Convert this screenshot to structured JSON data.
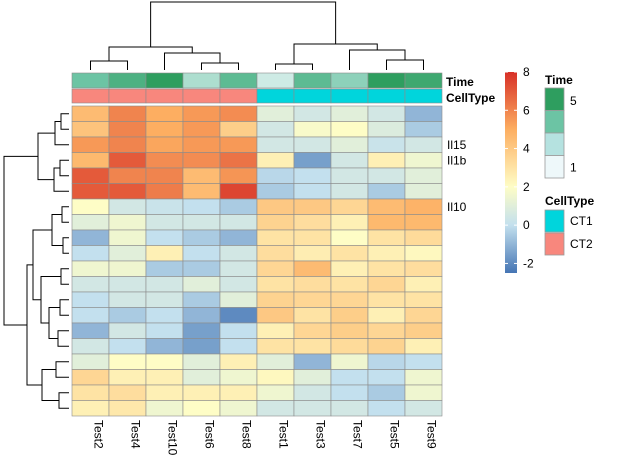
{
  "chart_data": {
    "type": "heatmap",
    "title": "",
    "columns": [
      "Test2",
      "Test4",
      "Test10",
      "Test6",
      "Test8",
      "Test1",
      "Test3",
      "Test7",
      "Test5",
      "Test9"
    ],
    "row_labels": [
      "",
      "",
      "Il15",
      "Il1b",
      "",
      "",
      "Il10",
      "",
      "",
      "",
      "",
      "",
      "",
      "",
      "",
      "",
      "",
      "",
      "",
      ""
    ],
    "values": [
      [
        4.5,
        6.0,
        5.0,
        5.5,
        5.8,
        1.0,
        0.5,
        1.0,
        0.5,
        -1.0
      ],
      [
        4.2,
        6.0,
        5.0,
        5.5,
        3.8,
        0.5,
        1.8,
        2.0,
        0.8,
        -0.5
      ],
      [
        5.5,
        6.0,
        5.2,
        5.5,
        5.5,
        0.5,
        0.5,
        1.0,
        0.2,
        0.5
      ],
      [
        4.6,
        7.0,
        5.8,
        5.8,
        6.4,
        2.5,
        -1.5,
        0.5,
        2.5,
        1.5
      ],
      [
        7.0,
        6.0,
        6.0,
        4.5,
        5.6,
        -0.2,
        0.0,
        0.5,
        0.5,
        1.0
      ],
      [
        7.0,
        7.0,
        6.2,
        4.5,
        7.5,
        -0.5,
        0.0,
        0.5,
        -0.5,
        1.0
      ],
      [
        2.0,
        0.5,
        0.2,
        0.0,
        -0.5,
        4.0,
        4.0,
        3.5,
        4.5,
        4.8
      ],
      [
        1.0,
        1.5,
        0.5,
        0.5,
        0.5,
        3.6,
        3.2,
        2.5,
        4.6,
        4.6
      ],
      [
        -1.0,
        1.5,
        0.0,
        -0.5,
        -1.0,
        3.0,
        3.0,
        2.0,
        3.0,
        3.3
      ],
      [
        0.0,
        1.0,
        2.5,
        0.0,
        0.5,
        3.2,
        2.6,
        3.0,
        2.5,
        2.2
      ],
      [
        1.5,
        1.5,
        -0.5,
        -0.5,
        0.5,
        3.5,
        4.5,
        2.5,
        3.0,
        3.2
      ],
      [
        0.5,
        0.5,
        0.5,
        1.0,
        0.5,
        3.0,
        3.2,
        3.0,
        3.5,
        2.5
      ],
      [
        0.0,
        0.5,
        0.5,
        -0.5,
        1.0,
        3.6,
        3.5,
        3.5,
        3.0,
        3.0
      ],
      [
        0.0,
        -0.5,
        0.0,
        -1.0,
        -2.0,
        4.0,
        3.0,
        3.8,
        2.5,
        3.5
      ],
      [
        -1.0,
        0.5,
        0.0,
        -1.5,
        0.0,
        2.5,
        3.5,
        3.8,
        3.5,
        3.8
      ],
      [
        0.5,
        0.0,
        -1.0,
        -1.5,
        0.0,
        3.0,
        3.0,
        3.3,
        3.6,
        2.5
      ],
      [
        1.0,
        2.0,
        2.0,
        1.0,
        2.5,
        1.0,
        -1.0,
        1.5,
        -0.2,
        0.0
      ],
      [
        3.5,
        2.5,
        2.5,
        1.0,
        1.5,
        2.2,
        1.0,
        0.0,
        0.0,
        1.5
      ],
      [
        3.0,
        3.2,
        2.5,
        2.5,
        2.5,
        1.5,
        0.5,
        0.0,
        -0.5,
        1.5
      ],
      [
        2.5,
        2.8,
        1.5,
        2.0,
        1.5,
        0.5,
        0.5,
        0.5,
        0.0,
        0.5
      ]
    ],
    "annotation_rows": [
      "Time",
      "CellType"
    ],
    "time": [
      3,
      4,
      5,
      2,
      3.5,
      1.5,
      3.5,
      2.5,
      5,
      4.5
    ],
    "celltype": [
      "CT2",
      "CT2",
      "CT2",
      "CT2",
      "CT2",
      "CT1",
      "CT1",
      "CT1",
      "CT1",
      "CT1"
    ],
    "color_scale": {
      "min": -2.5,
      "max": 8,
      "ticks": [
        -2,
        0,
        2,
        4,
        6,
        8
      ],
      "tick_labels": [
        "-2",
        "0",
        "2",
        "4",
        "6",
        "8"
      ],
      "stops": [
        {
          "value": -2.5,
          "color": "#4575b4"
        },
        {
          "value": 0.0,
          "color": "#c3e0ee"
        },
        {
          "value": 2.0,
          "color": "#fefdc6"
        },
        {
          "value": 5.0,
          "color": "#fdae61"
        },
        {
          "value": 8.0,
          "color": "#d73027"
        }
      ]
    },
    "legend": {
      "time_title": "Time",
      "time_tick_labels": [
        "5",
        "1"
      ],
      "time_colors": [
        "#2e9e5f",
        "#6cc4a4",
        "#b5e2e0",
        "#eef8fa"
      ],
      "celltype_title": "CellType",
      "celltype_labels": [
        "CT1",
        "CT2"
      ],
      "celltype_colors": {
        "CT1": "#00d5dc",
        "CT2": "#f8877d"
      }
    },
    "time_colors": {
      "1": "#eef8fa",
      "5": "#2e9e5f"
    }
  }
}
